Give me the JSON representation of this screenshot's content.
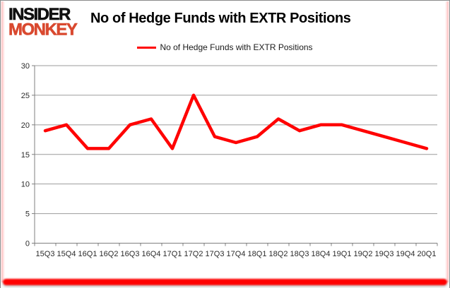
{
  "brand": {
    "line1": "INSIDER",
    "line2": "MONKEY"
  },
  "header": {
    "title": "No of Hedge Funds with EXTR Positions"
  },
  "legend": {
    "label": "No of Hedge Funds with EXTR Positions"
  },
  "chart_data": {
    "type": "line",
    "title": "No of Hedge Funds with EXTR Positions",
    "categories": [
      "15Q3",
      "15Q4",
      "16Q1",
      "16Q2",
      "16Q3",
      "16Q4",
      "17Q1",
      "17Q2",
      "17Q3",
      "17Q4",
      "18Q1",
      "18Q2",
      "18Q3",
      "18Q4",
      "19Q1",
      "19Q2",
      "19Q3",
      "19Q4",
      "20Q1"
    ],
    "series": [
      {
        "name": "No of Hedge Funds with EXTR Positions",
        "color": "#ff0000",
        "values": [
          19,
          20,
          16,
          16,
          20,
          21,
          16,
          25,
          18,
          17,
          18,
          21,
          19,
          20,
          20,
          19,
          18,
          17,
          16
        ]
      }
    ],
    "ylim": [
      0,
      30
    ],
    "yticks": [
      0,
      5,
      10,
      15,
      20,
      25,
      30
    ],
    "grid": true,
    "legend_position": "top"
  },
  "colors": {
    "line": "#ff0000",
    "grid": "#9b9b9b",
    "axis": "#7f7f7f",
    "brand_red": "#d9492f",
    "accent_bar": "#ff0000"
  }
}
